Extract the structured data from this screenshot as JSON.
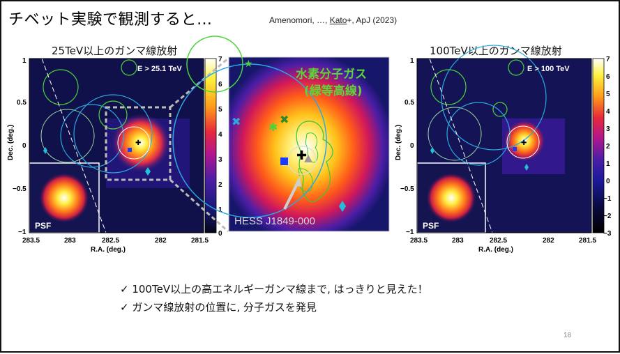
{
  "title": "チベット実験で観測すると…",
  "citation": {
    "prefix": "Amenomori, …, ",
    "kato": "Kato",
    "suffix": "+, ApJ (2023)"
  },
  "left_panel": {
    "heading": "25TeV以上のガンマ線放射",
    "energy_label": "E > 25.1 TeV",
    "psf_label": "PSF",
    "x_ticks": [
      "283.5",
      "283",
      "282.5",
      "282",
      "281.5"
    ],
    "y_ticks": [
      "1",
      "0.5",
      "0",
      "−0.5",
      "−1"
    ],
    "colorbar_ticks": [
      "7",
      "6",
      "5",
      "4",
      "3",
      "2",
      "1",
      "0"
    ],
    "xlabel": "R.A. (deg.)",
    "ylabel": "Dec. (deg.)"
  },
  "center_panel": {
    "gas_label_line1": "水素分子ガス",
    "gas_label_line2": "(緑等高線)",
    "source_label": "HESS J1849-000"
  },
  "right_panel": {
    "heading": "100TeV以上のガンマ線放射",
    "energy_label": "E > 100 TeV",
    "psf_label": "PSF",
    "x_ticks": [
      "283.5",
      "283",
      "282.5",
      "282",
      "281.5"
    ],
    "y_ticks": [
      "1",
      "0.5",
      "0",
      "−0.5",
      "−1"
    ],
    "colorbar_ticks": [
      "7",
      "6",
      "5",
      "4",
      "3",
      "2",
      "1",
      "0",
      "−1",
      "−2",
      "−3"
    ],
    "xlabel": "R.A. (deg.)",
    "ylabel": "Dec. (deg.)"
  },
  "bullets": [
    "✓ 100TeV以上の高エネルギーガンマ線まで, はっきりと見えた！",
    "✓ ガンマ線放射の位置に, 分子ガスを発見"
  ],
  "page_number": "18",
  "colors": {
    "gas_label": "#5dd43a",
    "map_bg": "#10104a",
    "hess_arrow": "#cfcfcf"
  }
}
